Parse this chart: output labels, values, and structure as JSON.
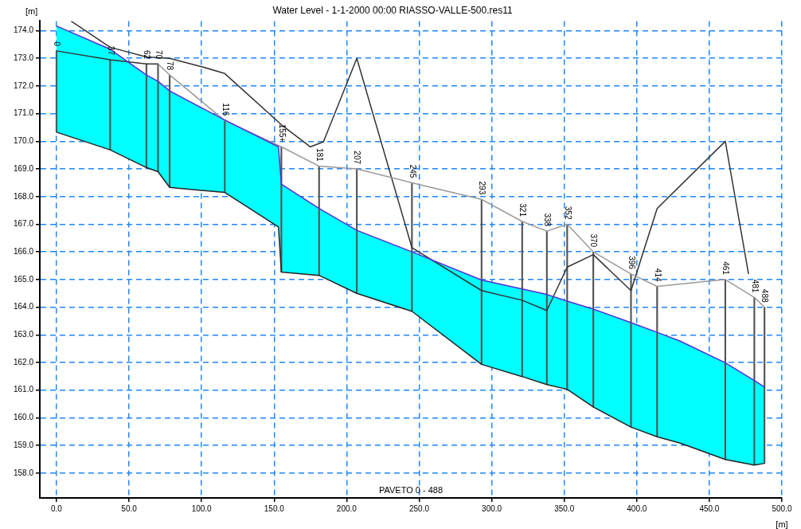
{
  "chart_data": {
    "type": "line",
    "title": "Water Level - 1-1-2000 00:00 RIASSO-VALLE-500.res11",
    "xlabel": "[m]",
    "ylabel": "[m]",
    "xlim": [
      -11.5,
      500
    ],
    "ylim": [
      157.1,
      174.35
    ],
    "xticks": [
      {
        "value": 0,
        "label": "0.0"
      },
      {
        "value": 50,
        "label": "50.0"
      },
      {
        "value": 100,
        "label": "100.0"
      },
      {
        "value": 150,
        "label": "150.0"
      },
      {
        "value": 200,
        "label": "200.0"
      },
      {
        "value": 250,
        "label": "250.0"
      },
      {
        "value": 300,
        "label": "300.0"
      },
      {
        "value": 350,
        "label": "350.0"
      },
      {
        "value": 400,
        "label": "400.0"
      },
      {
        "value": 450,
        "label": "450.0"
      },
      {
        "value": 500,
        "label": "500.0"
      }
    ],
    "yticks": [
      {
        "value": 158,
        "label": "158.0"
      },
      {
        "value": 159,
        "label": "159.0"
      },
      {
        "value": 160,
        "label": "160.0"
      },
      {
        "value": 161,
        "label": "161.0"
      },
      {
        "value": 162,
        "label": "162.0"
      },
      {
        "value": 163,
        "label": "163.0"
      },
      {
        "value": 164,
        "label": "164.0"
      },
      {
        "value": 165,
        "label": "165.0"
      },
      {
        "value": 166,
        "label": "166.0"
      },
      {
        "value": 167,
        "label": "167.0"
      },
      {
        "value": 168,
        "label": "168.0"
      },
      {
        "value": 169,
        "label": "169.0"
      },
      {
        "value": 170,
        "label": "170.0"
      },
      {
        "value": 171,
        "label": "171.0"
      },
      {
        "value": 172,
        "label": "172.0"
      },
      {
        "value": 173,
        "label": "173.0"
      },
      {
        "value": 174,
        "label": "174.0"
      }
    ],
    "grid": true,
    "legend": false,
    "marker": "none",
    "series": [
      {
        "type": "line",
        "color": "#5b2fd6",
        "x": [
          0,
          37,
          62,
          70,
          78,
          116,
          153,
          155,
          181,
          207,
          245,
          293,
          321,
          338,
          352,
          370,
          396,
          414,
          430,
          461,
          481,
          488
        ],
        "values": [
          174.17,
          173.33,
          172.4,
          172.17,
          171.82,
          170.77,
          169.8,
          168.45,
          167.57,
          166.78,
          166.0,
          164.98,
          164.66,
          164.46,
          164.22,
          163.93,
          163.44,
          163.09,
          162.77,
          161.99,
          161.35,
          161.11
        ]
      },
      {
        "type": "area",
        "color": "#00ffff",
        "x": [
          0,
          37,
          62,
          70,
          78,
          116,
          153,
          155,
          181,
          207,
          245,
          293,
          321,
          338,
          352,
          370,
          396,
          414,
          430,
          461,
          481,
          488
        ],
        "values": [
          174.17,
          173.33,
          172.4,
          172.17,
          171.82,
          170.77,
          169.8,
          168.45,
          167.57,
          166.78,
          166.0,
          164.98,
          164.66,
          164.46,
          164.22,
          163.93,
          163.44,
          163.09,
          162.77,
          161.99,
          161.35,
          161.11
        ]
      },
      {
        "color": "#222222",
        "x": [
          0,
          37,
          62,
          70,
          78,
          116,
          153,
          155,
          181,
          207,
          245,
          293,
          321,
          338,
          352,
          370,
          396,
          414,
          430,
          461,
          481,
          488
        ],
        "values": [
          170.33,
          169.69,
          169.05,
          168.9,
          168.33,
          168.15,
          166.9,
          165.27,
          165.15,
          164.5,
          163.85,
          161.93,
          161.49,
          161.2,
          161.03,
          160.39,
          159.66,
          159.31,
          159.08,
          158.49,
          158.29,
          158.35
        ]
      },
      {
        "color": "#333333",
        "x": [
          0,
          37,
          62,
          70
        ],
        "values": [
          173.27,
          172.95,
          172.8,
          172.8
        ]
      },
      {
        "color": "#999999",
        "x": [
          70,
          78,
          116,
          155,
          181,
          207,
          245,
          293,
          321,
          338,
          352,
          370,
          396,
          414,
          461,
          481,
          488
        ],
        "values": [
          172.8,
          172.4,
          170.75,
          169.8,
          169.1,
          169.0,
          168.5,
          167.9,
          167.1,
          166.75,
          167.0,
          166.0,
          165.2,
          164.75,
          165.0,
          164.35,
          164.0
        ]
      },
      {
        "color": "#333333",
        "x": [
          10,
          37,
          62,
          78,
          100,
          116,
          155,
          175,
          184,
          207,
          245,
          293,
          321,
          338,
          352,
          370,
          396,
          414,
          461,
          477
        ],
        "values": [
          174.35,
          173.4,
          173.05,
          173.0,
          172.7,
          172.45,
          170.6,
          169.8,
          169.98,
          173.0,
          166.15,
          164.6,
          164.25,
          163.88,
          165.45,
          165.9,
          164.6,
          167.57,
          170.0,
          165.2
        ]
      },
      {
        "type": "bar",
        "color": "#555555",
        "x": [
          0,
          37,
          62,
          70,
          78,
          116,
          155,
          181,
          207,
          245,
          293,
          321,
          338,
          352,
          370,
          396,
          414,
          461,
          481,
          488
        ],
        "base": [
          170.33,
          169.69,
          169.05,
          168.9,
          168.33,
          168.15,
          165.27,
          165.15,
          164.5,
          163.85,
          161.93,
          161.49,
          161.2,
          161.03,
          160.39,
          159.66,
          159.31,
          158.49,
          158.29,
          158.35
        ],
        "values": [
          2.94,
          3.26,
          3.75,
          3.9,
          4.07,
          2.6,
          4.53,
          3.95,
          4.5,
          4.65,
          5.97,
          5.61,
          5.55,
          5.97,
          5.61,
          5.54,
          5.44,
          6.51,
          6.06,
          5.65
        ]
      }
    ],
    "annotations": [
      {
        "text": "0",
        "x": 0,
        "y": 173.27
      },
      {
        "text": "37",
        "x": 37,
        "y": 172.95
      },
      {
        "text": "62",
        "x": 62,
        "y": 172.8
      },
      {
        "text": "70",
        "x": 70,
        "y": 172.8
      },
      {
        "text": "78",
        "x": 78,
        "y": 172.4
      },
      {
        "text": "116",
        "x": 116,
        "y": 170.75
      },
      {
        "text": "155+",
        "x": 155,
        "y": 169.8
      },
      {
        "text": "181",
        "x": 181,
        "y": 169.1
      },
      {
        "text": "207",
        "x": 207,
        "y": 169.0
      },
      {
        "text": "245",
        "x": 245,
        "y": 168.5
      },
      {
        "text": "293",
        "x": 293,
        "y": 167.9
      },
      {
        "text": "321",
        "x": 321,
        "y": 167.1
      },
      {
        "text": "338",
        "x": 338,
        "y": 166.75
      },
      {
        "text": "352",
        "x": 352,
        "y": 167.0
      },
      {
        "text": "370",
        "x": 370,
        "y": 166.0
      },
      {
        "text": "396",
        "x": 396,
        "y": 165.2
      },
      {
        "text": "414",
        "x": 414,
        "y": 164.75
      },
      {
        "text": "461",
        "x": 461,
        "y": 165.0
      },
      {
        "text": "481",
        "x": 481,
        "y": 164.35
      },
      {
        "text": "488",
        "x": 488,
        "y": 164.0
      },
      "PAVETO 0 - 488"
    ]
  }
}
